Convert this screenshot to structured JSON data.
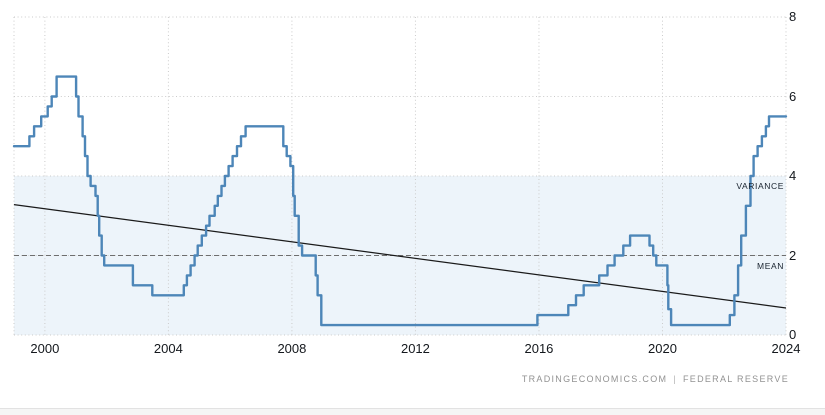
{
  "footer": {
    "source": "TRADINGECONOMICS.COM",
    "separator": "|",
    "provider": "FEDERAL RESERVE"
  },
  "chart_data": {
    "type": "line",
    "step": true,
    "title": "",
    "xlabel": "",
    "ylabel": "",
    "xlim": [
      1999.0,
      2024.0
    ],
    "ylim": [
      0,
      8
    ],
    "x_ticks": [
      2000,
      2004,
      2008,
      2012,
      2016,
      2020,
      2024
    ],
    "y_ticks": [
      0,
      2,
      4,
      6,
      8
    ],
    "grid": true,
    "legend": "none",
    "series": [
      {
        "points": [
          [
            1999.0,
            4.75
          ],
          [
            1999.5,
            5.0
          ],
          [
            1999.65,
            5.25
          ],
          [
            1999.88,
            5.5
          ],
          [
            2000.09,
            5.75
          ],
          [
            2000.22,
            6.0
          ],
          [
            2000.38,
            6.5
          ],
          [
            2001.01,
            6.0
          ],
          [
            2001.09,
            5.5
          ],
          [
            2001.22,
            5.0
          ],
          [
            2001.3,
            4.5
          ],
          [
            2001.38,
            4.0
          ],
          [
            2001.48,
            3.75
          ],
          [
            2001.64,
            3.5
          ],
          [
            2001.71,
            3.0
          ],
          [
            2001.76,
            2.5
          ],
          [
            2001.84,
            2.0
          ],
          [
            2001.92,
            1.75
          ],
          [
            2002.85,
            1.25
          ],
          [
            2003.48,
            1.0
          ],
          [
            2004.5,
            1.25
          ],
          [
            2004.6,
            1.5
          ],
          [
            2004.72,
            1.75
          ],
          [
            2004.85,
            2.0
          ],
          [
            2004.95,
            2.25
          ],
          [
            2005.08,
            2.5
          ],
          [
            2005.22,
            2.75
          ],
          [
            2005.33,
            3.0
          ],
          [
            2005.5,
            3.25
          ],
          [
            2005.6,
            3.5
          ],
          [
            2005.72,
            3.75
          ],
          [
            2005.83,
            4.0
          ],
          [
            2005.95,
            4.25
          ],
          [
            2006.08,
            4.5
          ],
          [
            2006.22,
            4.75
          ],
          [
            2006.35,
            5.0
          ],
          [
            2006.5,
            5.25
          ],
          [
            2007.72,
            4.75
          ],
          [
            2007.83,
            4.5
          ],
          [
            2007.95,
            4.25
          ],
          [
            2008.04,
            3.5
          ],
          [
            2008.09,
            3.0
          ],
          [
            2008.22,
            2.25
          ],
          [
            2008.33,
            2.0
          ],
          [
            2008.77,
            1.5
          ],
          [
            2008.83,
            1.0
          ],
          [
            2008.95,
            0.25
          ],
          [
            2015.95,
            0.5
          ],
          [
            2016.95,
            0.75
          ],
          [
            2017.2,
            1.0
          ],
          [
            2017.45,
            1.25
          ],
          [
            2017.95,
            1.5
          ],
          [
            2018.22,
            1.75
          ],
          [
            2018.45,
            2.0
          ],
          [
            2018.73,
            2.25
          ],
          [
            2018.95,
            2.5
          ],
          [
            2019.58,
            2.25
          ],
          [
            2019.7,
            2.0
          ],
          [
            2019.8,
            1.75
          ],
          [
            2020.16,
            1.25
          ],
          [
            2020.19,
            0.65
          ],
          [
            2020.28,
            0.25
          ],
          [
            2022.18,
            0.5
          ],
          [
            2022.33,
            1.0
          ],
          [
            2022.45,
            1.75
          ],
          [
            2022.55,
            2.5
          ],
          [
            2022.7,
            3.25
          ],
          [
            2022.85,
            4.0
          ],
          [
            2022.95,
            4.5
          ],
          [
            2023.08,
            4.75
          ],
          [
            2023.22,
            5.0
          ],
          [
            2023.35,
            5.25
          ],
          [
            2023.45,
            5.5
          ],
          [
            2024.0,
            5.5
          ]
        ]
      }
    ],
    "trend_line": {
      "x1": 1999.0,
      "v1": 3.28,
      "x2": 2024.0,
      "v2": 0.68
    },
    "mean_line": {
      "value": 2,
      "label": "MEAN"
    },
    "variance_band": {
      "from": 0,
      "to": 4,
      "label": "VARIANCE"
    },
    "colors": {
      "line": "#4d86b8",
      "band": "#edf4fa",
      "grid": "#cbcbcb",
      "mean": "#6e6e6e",
      "trend": "#1a1a1a",
      "tick_text": "#14181d",
      "annot_text": "#18222e",
      "footer_text": "#929292"
    }
  }
}
